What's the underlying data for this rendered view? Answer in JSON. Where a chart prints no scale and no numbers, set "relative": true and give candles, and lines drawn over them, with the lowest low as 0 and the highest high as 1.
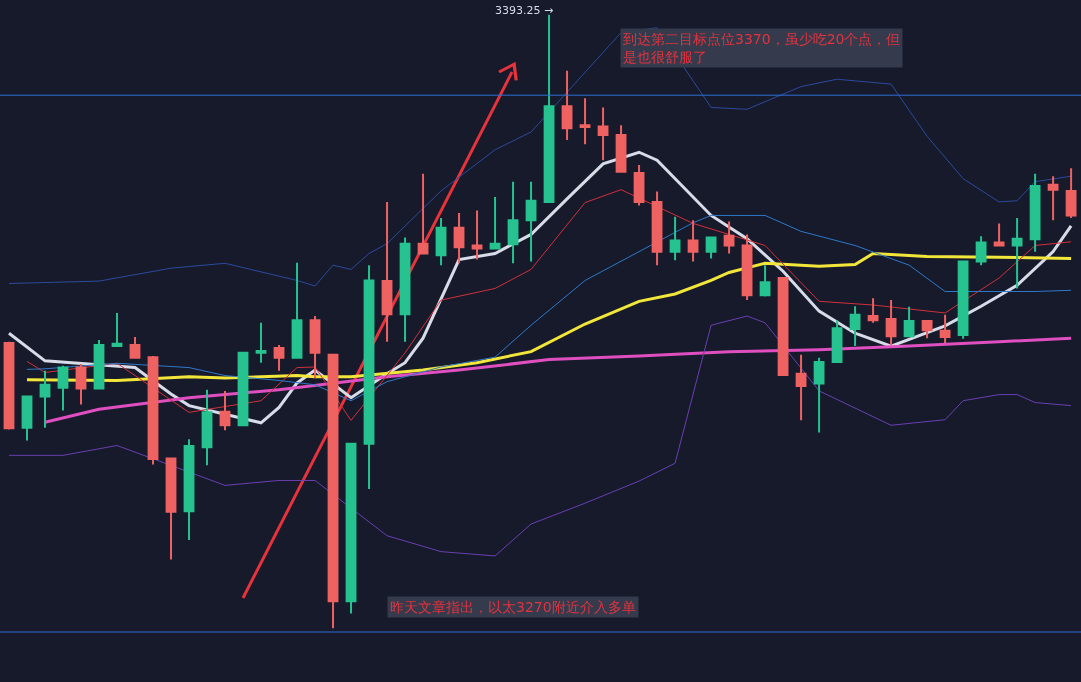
{
  "chart_data": {
    "type": "candlestick",
    "relative": true,
    "grid": false,
    "categories": [
      null,
      null,
      null,
      null,
      null,
      null,
      null,
      null,
      null,
      null,
      null,
      null,
      null,
      null,
      null,
      null,
      null,
      null,
      null,
      null,
      null,
      null,
      null,
      null,
      null,
      null,
      null,
      null,
      null,
      null,
      null,
      null,
      null,
      null,
      null,
      null,
      null,
      null,
      null,
      null,
      null,
      null,
      null,
      null,
      null,
      null,
      null,
      null,
      null,
      null,
      null,
      null,
      null,
      null,
      null,
      null,
      null,
      null,
      null,
      null
    ],
    "ohlc": [
      [
        0.465,
        0.467,
        0.324,
        0.326
      ],
      [
        0.327,
        0.379,
        0.306,
        0.378
      ],
      [
        0.378,
        0.42,
        0.327,
        0.397
      ],
      [
        0.392,
        0.428,
        0.355,
        0.425
      ],
      [
        0.425,
        0.431,
        0.365,
        0.391
      ],
      [
        0.391,
        0.47,
        0.391,
        0.462
      ],
      [
        0.46,
        0.514,
        0.46,
        0.464
      ],
      [
        0.462,
        0.475,
        0.441,
        0.441
      ],
      [
        0.442,
        0.444,
        0.267,
        0.276
      ],
      [
        0.277,
        0.277,
        0.112,
        0.19
      ],
      [
        0.191,
        0.308,
        0.144,
        0.297
      ],
      [
        0.295,
        0.389,
        0.266,
        0.352
      ],
      [
        0.353,
        0.387,
        0.323,
        0.331
      ],
      [
        0.331,
        0.449,
        0.331,
        0.449
      ],
      [
        0.449,
        0.498,
        0.433,
        0.452
      ],
      [
        0.457,
        0.462,
        0.42,
        0.441
      ],
      [
        0.441,
        0.596,
        0.441,
        0.502
      ],
      [
        0.502,
        0.509,
        0.408,
        0.449
      ],
      [
        0.446,
        0.446,
        0,
        0.044
      ],
      [
        0.044,
        0.301,
        0.024,
        0.301
      ],
      [
        0.301,
        0.592,
        0.227,
        0.567
      ],
      [
        0.566,
        0.695,
        0.467,
        0.512
      ],
      [
        0.512,
        0.637,
        0.467,
        0.627
      ],
      [
        0.627,
        0.741,
        0.611,
        0.611
      ],
      [
        0.608,
        0.669,
        0.592,
        0.653
      ],
      [
        0.653,
        0.677,
        0.595,
        0.621
      ],
      [
        0.624,
        0.681,
        0.601,
        0.619
      ],
      [
        0.619,
        0.703,
        0.619,
        0.627
      ],
      [
        0.626,
        0.728,
        0.595,
        0.665
      ],
      [
        0.665,
        0.728,
        0.598,
        0.697
      ],
      [
        0.695,
        1,
        0.695,
        0.851
      ],
      [
        0.851,
        0.909,
        0.796,
        0.815
      ],
      [
        0.82,
        0.864,
        0.789,
        0.817
      ],
      [
        0.818,
        0.849,
        0.763,
        0.804
      ],
      [
        0.804,
        0.82,
        0.744,
        0.744
      ],
      [
        0.742,
        0.755,
        0.689,
        0.695
      ],
      [
        0.695,
        0.712,
        0.592,
        0.614
      ],
      [
        0.614,
        0.671,
        0.6,
        0.632
      ],
      [
        0.632,
        0.665,
        0.598,
        0.614
      ],
      [
        0.614,
        0.637,
        0.603,
        0.637
      ],
      [
        0.64,
        0.663,
        0.611,
        0.624
      ],
      [
        0.624,
        0.642,
        0.535,
        0.543
      ],
      [
        0.543,
        0.592,
        0.541,
        0.564
      ],
      [
        0.571,
        0.571,
        0.413,
        0.413
      ],
      [
        0.415,
        0.446,
        0.339,
        0.395
      ],
      [
        0.399,
        0.441,
        0.319,
        0.434
      ],
      [
        0.434,
        0.502,
        0.434,
        0.489
      ],
      [
        0.488,
        0.525,
        0.46,
        0.511
      ],
      [
        0.509,
        0.538,
        0.498,
        0.502
      ],
      [
        0.504,
        0.535,
        0.462,
        0.476
      ],
      [
        0.476,
        0.524,
        0.476,
        0.501
      ],
      [
        0.501,
        0.501,
        0.473,
        0.486
      ],
      [
        0.485,
        0.511,
        0.465,
        0.475
      ],
      [
        0.478,
        0.598,
        0.472,
        0.598
      ],
      [
        0.598,
        0.639,
        0.592,
        0.629
      ],
      [
        0.629,
        0.66,
        0.624,
        0.624
      ],
      [
        0.624,
        0.669,
        0.554,
        0.635
      ],
      [
        0.634,
        0.741,
        0.614,
        0.721
      ],
      [
        0.723,
        0.737,
        0.665,
        0.715
      ],
      [
        0.713,
        0.75,
        0.669,
        0.673
      ]
    ],
    "colors": [
      "#ef6262",
      "#26c28f",
      "#26c28f",
      "#26c28f",
      "#ef6262",
      "#26c28f",
      "#26c28f",
      "#ef6262",
      "#ef6262",
      "#ef6262",
      "#26c28f",
      "#26c28f",
      "#ef6262",
      "#26c28f",
      "#26c28f",
      "#ef6262",
      "#26c28f",
      "#ef6262",
      "#ef6262",
      "#26c28f",
      "#26c28f",
      "#ef6262",
      "#26c28f",
      "#ef6262",
      "#26c28f",
      "#ef6262",
      "#ef6262",
      "#26c28f",
      "#26c28f",
      "#26c28f",
      "#26c28f",
      "#ef6262",
      "#ef6262",
      "#ef6262",
      "#ef6262",
      "#ef6262",
      "#ef6262",
      "#26c28f",
      "#ef6262",
      "#26c28f",
      "#ef6262",
      "#ef6262",
      "#26c28f",
      "#ef6262",
      "#ef6262",
      "#26c28f",
      "#26c28f",
      "#26c28f",
      "#ef6262",
      "#ef6262",
      "#26c28f",
      "#ef6262",
      "#ef6262",
      "#26c28f",
      "#26c28f",
      "#ef6262",
      "#26c28f",
      "#26c28f",
      "#ef6262",
      "#ef6262"
    ],
    "series": [
      {
        "type": "line",
        "color": "#d8dbe8",
        "values": [
          0.481,
          null,
          0.436,
          null,
          null,
          null,
          null,
          0.425,
          null,
          0.382,
          0.363,
          null,
          null,
          null,
          0.335,
          0.36,
          0.4,
          0.421,
          null,
          0.376,
          null,
          0.415,
          0.433,
          0.473,
          null,
          0.601,
          null,
          0.611,
          null,
          0.642,
          null,
          0.7,
          null,
          0.757,
          null,
          0.776,
          0.763,
          null,
          null,
          0.673,
          null,
          0.635,
          null,
          0.582,
          null,
          0.517,
          null,
          0.481,
          null,
          0.46,
          null,
          null,
          0.493,
          null,
          0.525,
          null,
          0.559,
          null,
          0.614,
          0.656
        ]
      },
      {
        "type": "line",
        "color": "#f2e63a",
        "values": [
          null,
          0.405,
          null,
          null,
          null,
          null,
          0.404,
          null,
          null,
          null,
          0.41,
          null,
          0.408,
          null,
          null,
          null,
          0.412,
          0.41,
          null,
          0.41,
          null,
          null,
          null,
          0.421,
          null,
          null,
          0.433,
          null,
          null,
          0.451,
          null,
          null,
          0.496,
          null,
          null,
          0.533,
          null,
          0.545,
          null,
          0.567,
          0.58,
          null,
          0.595,
          null,
          null,
          0.59,
          null,
          0.593,
          0.611,
          null,
          null,
          0.606,
          null,
          null,
          null,
          0.605,
          null,
          null,
          null,
          0.603
        ]
      },
      {
        "type": "line",
        "color": "#e04fc0",
        "values": [
          null,
          null,
          0.336,
          null,
          null,
          0.357,
          null,
          null,
          null,
          null,
          0.376,
          null,
          null,
          null,
          null,
          0.389,
          null,
          null,
          null,
          null,
          null,
          0.41,
          null,
          null,
          null,
          0.421,
          null,
          null,
          null,
          null,
          0.438,
          null,
          null,
          null,
          null,
          0.444,
          null,
          null,
          null,
          null,
          0.451,
          null,
          null,
          null,
          null,
          0.454,
          null,
          null,
          null,
          null,
          0.46,
          null,
          null,
          null,
          null,
          0.467,
          null,
          null,
          null,
          0.473
        ]
      },
      {
        "type": "line",
        "color": "#d0303a",
        "values": [
          null,
          0.435,
          0.417,
          null,
          null,
          null,
          0.432,
          null,
          null,
          null,
          0.352,
          null,
          null,
          null,
          0.371,
          null,
          0.425,
          0.426,
          null,
          0.339,
          null,
          null,
          0.449,
          null,
          0.535,
          null,
          null,
          0.554,
          null,
          0.585,
          null,
          null,
          0.694,
          null,
          0.715,
          null,
          null,
          null,
          0.66,
          null,
          null,
          null,
          0.624,
          null,
          null,
          0.533,
          null,
          null,
          0.527,
          null,
          null,
          null,
          0.514,
          null,
          null,
          0.571,
          null,
          0.624,
          null,
          0.63
        ]
      },
      {
        "type": "line",
        "color": "#2b4a9c",
        "values": [
          0.562,
          null,
          null,
          null,
          null,
          0.566,
          null,
          null,
          null,
          0.587,
          null,
          null,
          0.595,
          null,
          null,
          null,
          0.567,
          0.558,
          0.592,
          0.585,
          0.611,
          0.627,
          null,
          null,
          0.713,
          null,
          null,
          0.78,
          null,
          0.809,
          null,
          null,
          null,
          null,
          0.971,
          null,
          0.979,
          null,
          null,
          0.849,
          null,
          0.846,
          null,
          null,
          0.883,
          null,
          0.895,
          null,
          null,
          0.887,
          null,
          0.802,
          null,
          0.733,
          null,
          0.695,
          0.697,
          0.728,
          null,
          0.737
        ]
      },
      {
        "type": "line",
        "color": "#2f78c8",
        "values": [
          null,
          0.422,
          0.423,
          null,
          null,
          null,
          0.432,
          null,
          null,
          null,
          0.425,
          null,
          0.412,
          null,
          null,
          0.404,
          null,
          0.397,
          null,
          0.371,
          null,
          0.402,
          null,
          null,
          0.426,
          null,
          null,
          0.442,
          null,
          0.494,
          null,
          null,
          0.567,
          null,
          null,
          0.614,
          null,
          null,
          0.661,
          0.673,
          null,
          null,
          0.673,
          null,
          0.647,
          null,
          null,
          0.624,
          null,
          null,
          0.592,
          null,
          0.549,
          null,
          null,
          null,
          null,
          0.549,
          null,
          0.551
        ]
      },
      {
        "type": "line",
        "color": "#6a3fb0",
        "values": [
          0.282,
          null,
          null,
          0.282,
          null,
          null,
          0.298,
          null,
          null,
          null,
          null,
          null,
          0.233,
          null,
          null,
          0.241,
          null,
          0.241,
          null,
          null,
          null,
          0.151,
          null,
          null,
          0.125,
          null,
          null,
          0.118,
          null,
          0.17,
          null,
          null,
          0.204,
          null,
          null,
          0.24,
          null,
          0.269,
          null,
          0.494,
          null,
          0.509,
          0.498,
          null,
          null,
          0.387,
          null,
          null,
          null,
          0.331,
          null,
          null,
          0.34,
          0.371,
          null,
          0.381,
          0.381,
          0.368,
          null,
          0.363
        ]
      }
    ],
    "ref_lines": [
      {
        "axis": "y",
        "value": 0.869,
        "color": "#2f6fd6"
      },
      {
        "axis": "y",
        "value": -0.006,
        "color": "#2f6fd6"
      }
    ],
    "annotations": [
      "3393.25 →",
      "到达第二目标点位3370，虽少吃20个点，但是也很舒服了",
      "昨天文章指出，以太3270附近介入多单"
    ]
  }
}
